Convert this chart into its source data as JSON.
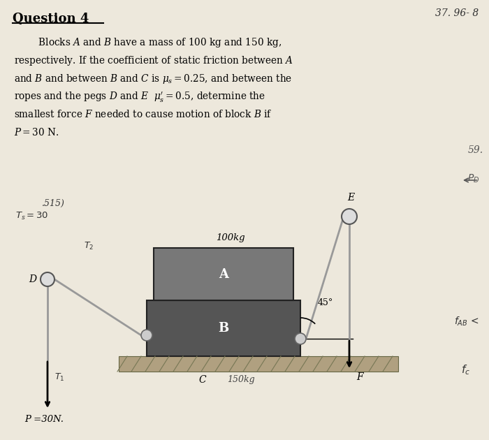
{
  "bg_color": "#ede8dc",
  "title": "Question 4",
  "corner_text": "37. 96- 8",
  "problem_lines": [
    "        Blocks $A$ and $B$ have a mass of 100 kg and 150 kg,",
    "respectively. If the coefficient of static friction between $A$",
    "and $B$ and between $B$ and $C$ is $\\mu_s = 0.25$, and between the",
    "ropes and the pegs $D$ and $E$  $\\mu_s^{\\prime} = 0.5$, determine the",
    "smallest force $F$ needed to cause motion of block $B$ if",
    "$P = 30$ N."
  ],
  "side_note_1": "59.",
  "side_note_2": "$P_D$",
  "hw_ts30": "$T_s=30$",
  "hw_515": ".515)",
  "hw_t2": "$T_2$",
  "hw_t1": "$T_1$",
  "hw_fab": "$f_{AB}$ <",
  "hw_fc": "$f_c$",
  "block_A_color": "#787878",
  "block_B_color": "#555555",
  "ground_color": "#a09070",
  "label_A": "A",
  "label_B": "B",
  "label_C": "C",
  "label_D": "D",
  "label_E": "E",
  "label_F": "F",
  "label_100kg": "100kg",
  "label_150kg": "150kg",
  "angle_label": "45°",
  "force_label": "P =30N."
}
